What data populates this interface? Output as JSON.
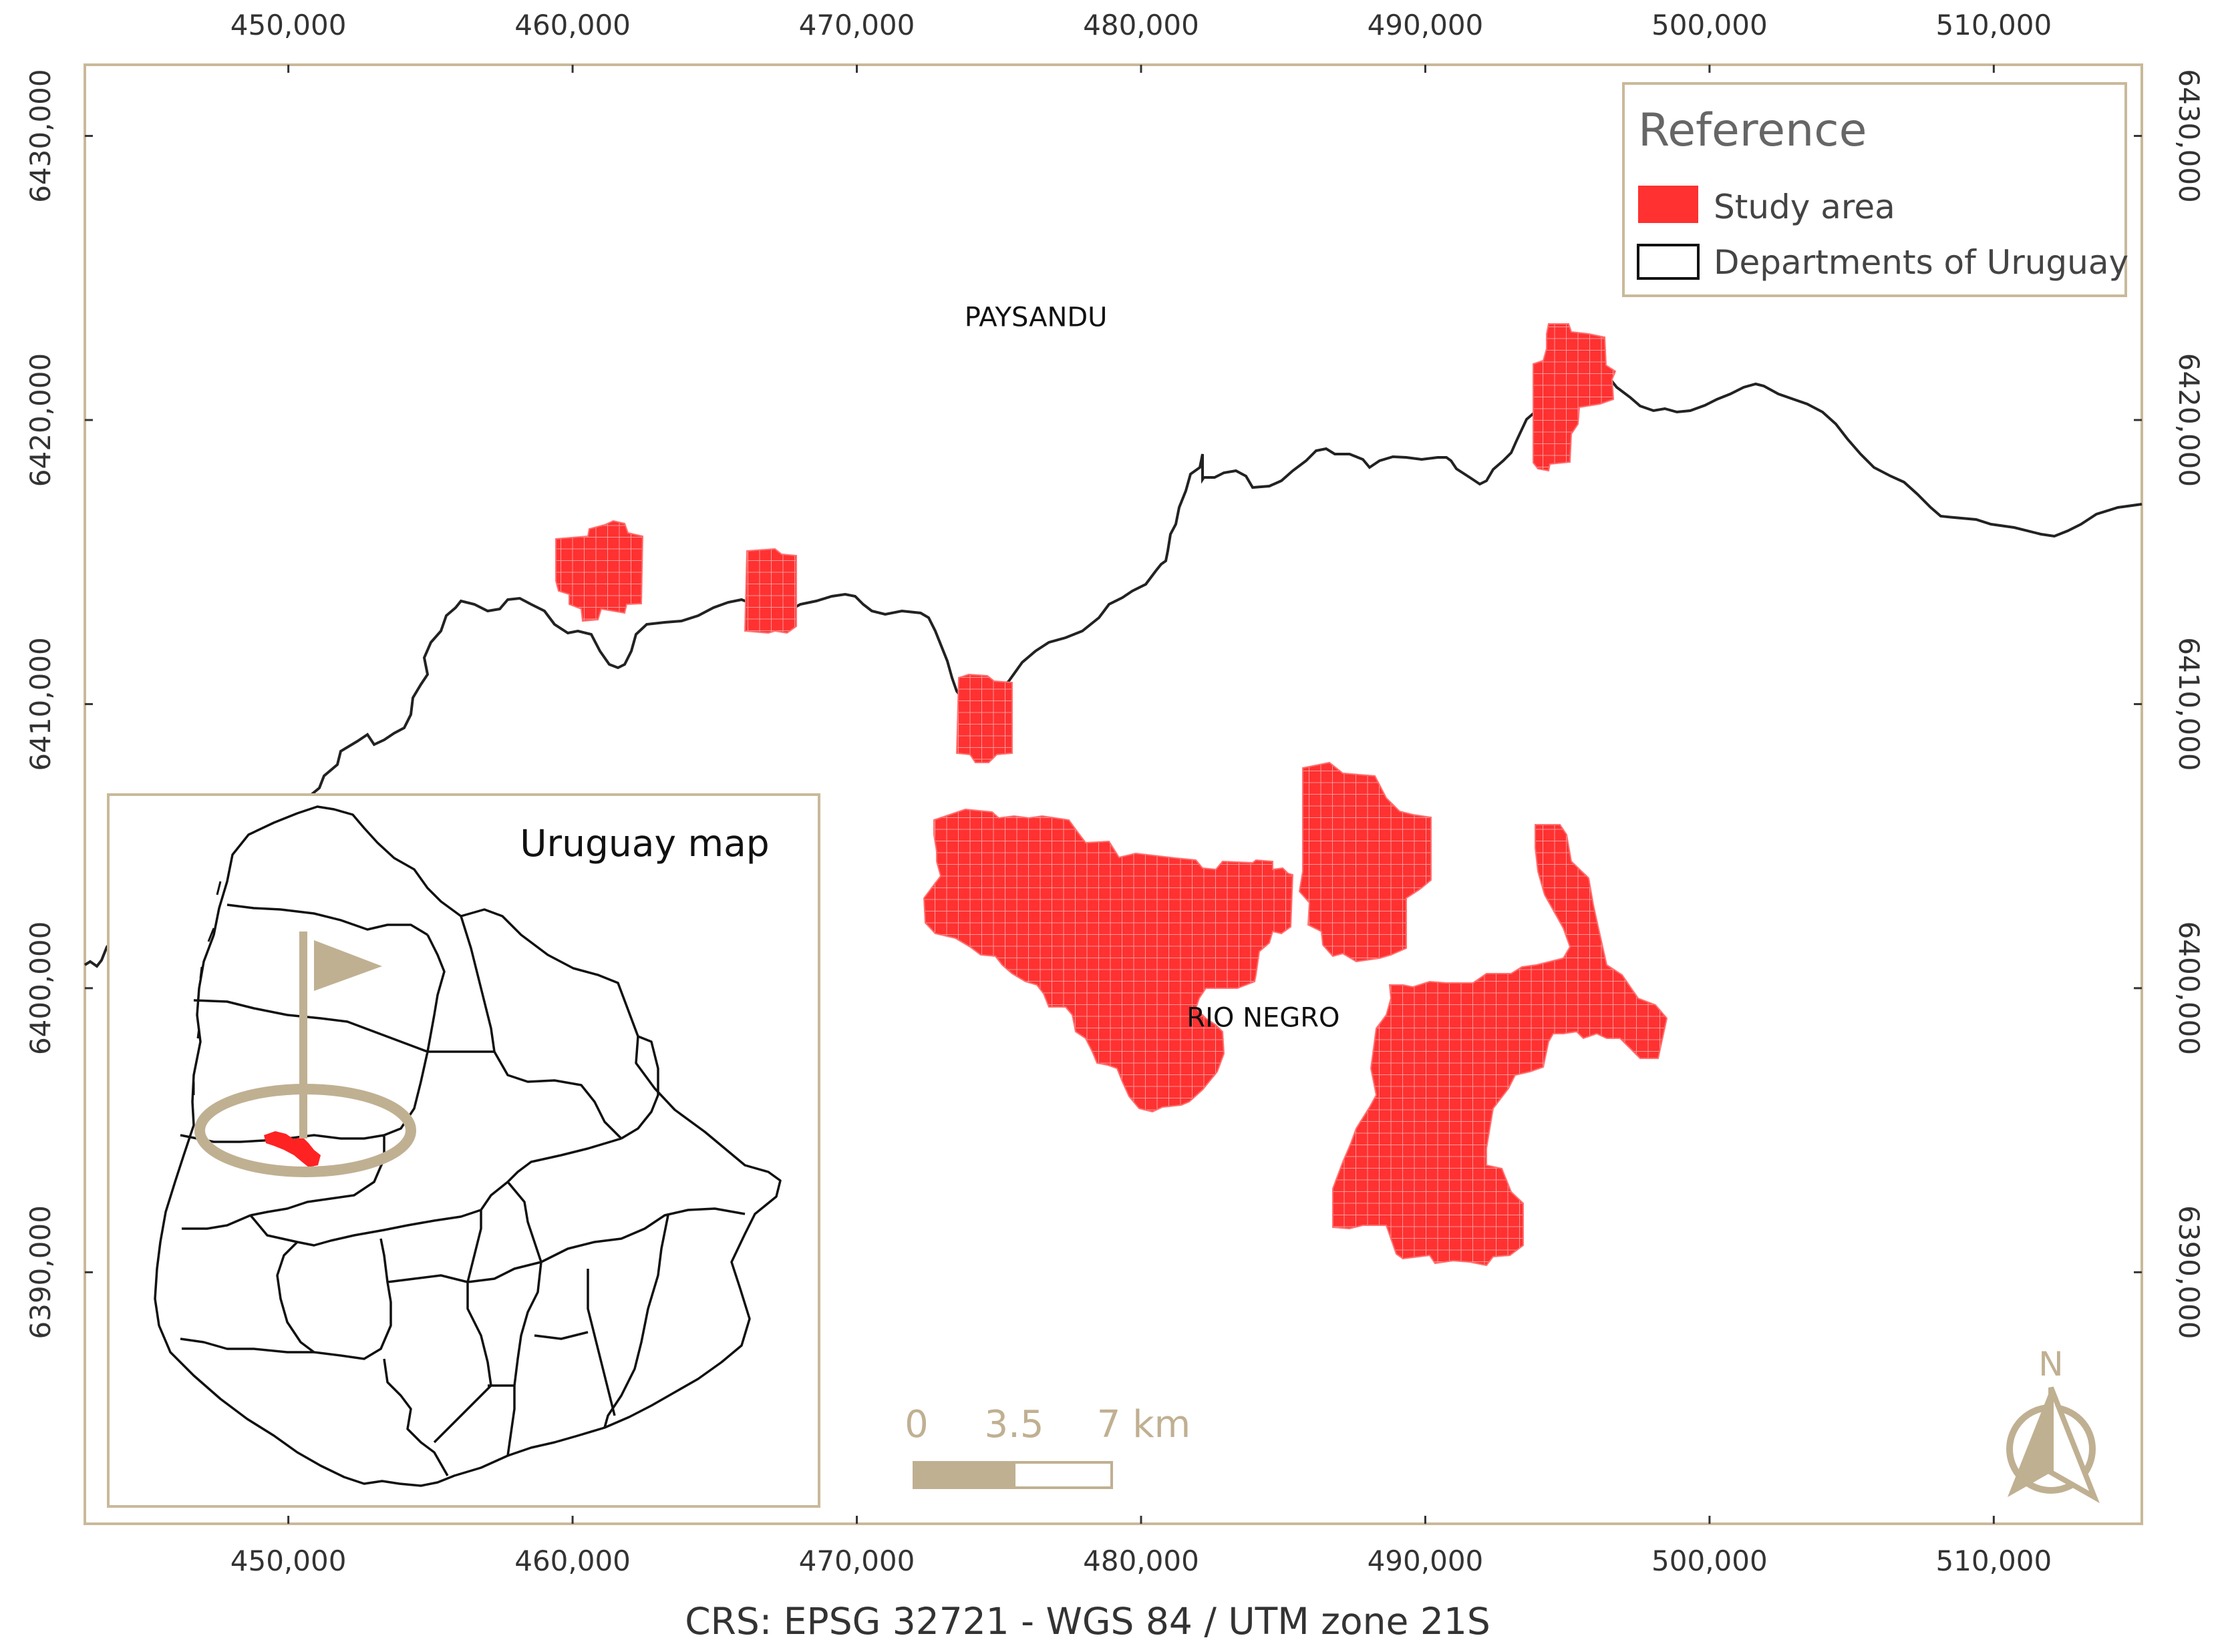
{
  "map": {
    "crs_label": "CRS: EPSG 32721 - WGS 84 / UTM zone 21S",
    "x_ticks": [
      {
        "value": 450000,
        "label": "450,000"
      },
      {
        "value": 460000,
        "label": "460,000"
      },
      {
        "value": 470000,
        "label": "470,000"
      },
      {
        "value": 480000,
        "label": "480,000"
      },
      {
        "value": 490000,
        "label": "490,000"
      },
      {
        "value": 500000,
        "label": "500,000"
      },
      {
        "value": 510000,
        "label": "510,000"
      }
    ],
    "y_ticks": [
      {
        "value": 6430000,
        "label": "6430,000"
      },
      {
        "value": 6420000,
        "label": "6420,000"
      },
      {
        "value": 6410000,
        "label": "6410,000"
      },
      {
        "value": 6400000,
        "label": "6400,000"
      },
      {
        "value": 6390000,
        "label": "6390,000"
      }
    ],
    "x_range": [
      442840,
      515210
    ],
    "y_range": [
      6381145,
      6432505
    ],
    "place_labels": [
      {
        "text": "PAYSANDU",
        "x": 476300,
        "y": 6423300
      },
      {
        "text": "RIO NEGRO",
        "x": 484300,
        "y": 6398650
      }
    ],
    "colors": {
      "study_area": "#ff2f2f",
      "grid_line": "#f88a8a",
      "boundary": "#222222",
      "frame": "#c9b99a",
      "accent": "#c0b092"
    }
  },
  "legend": {
    "title": "Reference",
    "items": [
      {
        "label": "Study area",
        "swatch": "filled-red"
      },
      {
        "label": "Departments of Uruguay",
        "swatch": "outline"
      }
    ]
  },
  "inset": {
    "title": "Uruguay map",
    "marker_icon": "flag-icon"
  },
  "scale_bar": {
    "labels": [
      "0",
      "3.5",
      "7 km"
    ]
  },
  "north_arrow": {
    "label": "N",
    "icon": "north-arrow-icon"
  }
}
